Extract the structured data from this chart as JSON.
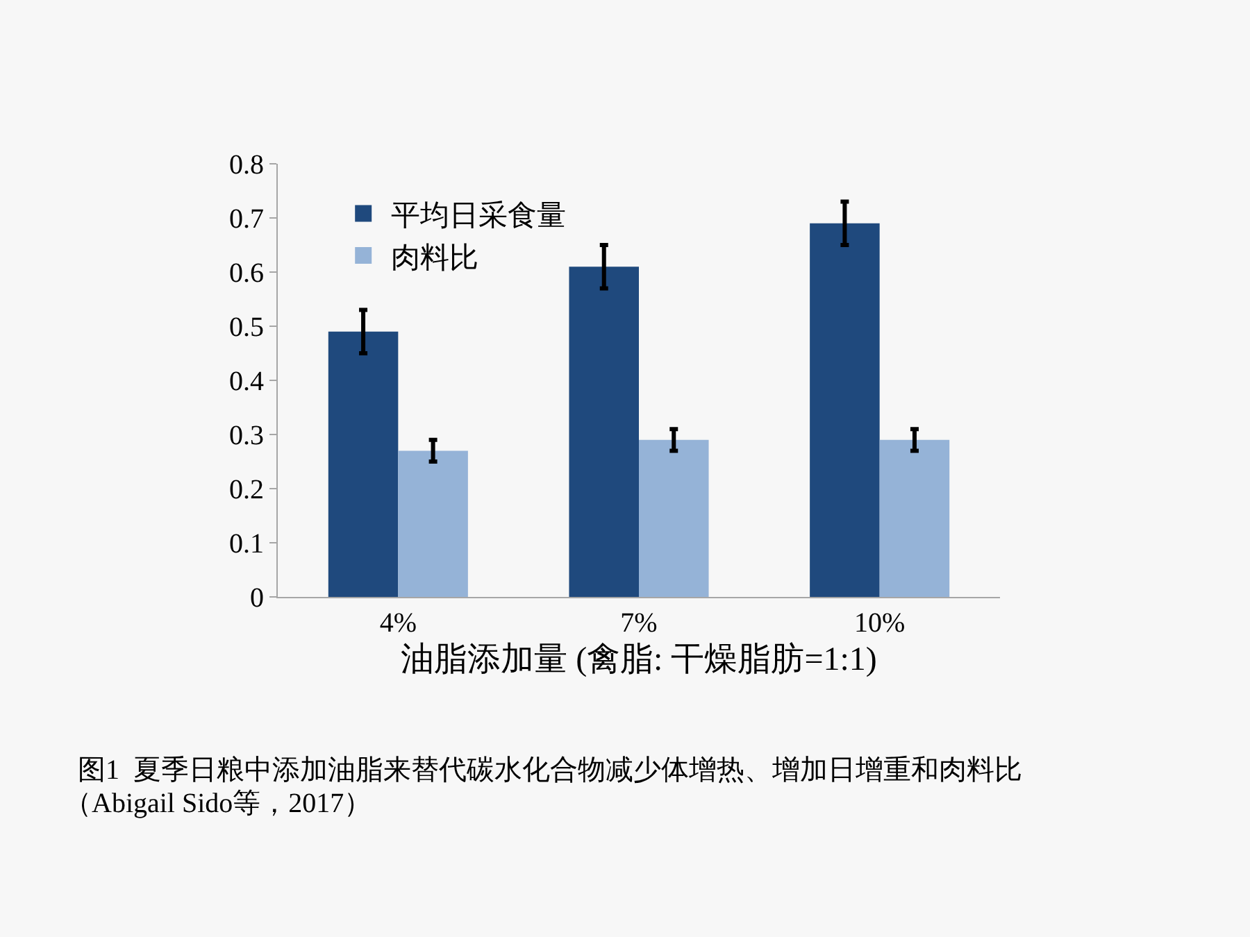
{
  "chart_data": {
    "type": "bar",
    "xlabel": "油脂添加量 (禽脂: 干燥脂肪=1:1)",
    "categories": [
      "4%",
      "7%",
      "10%"
    ],
    "series": [
      {
        "name": "平均日采食量",
        "color": "#1f497d",
        "values": [
          0.49,
          0.61,
          0.69
        ],
        "errors": [
          0.04,
          0.04,
          0.04
        ]
      },
      {
        "name": "肉料比",
        "color": "#95b3d7",
        "values": [
          0.27,
          0.29,
          0.29
        ],
        "errors": [
          0.02,
          0.02,
          0.02
        ]
      }
    ],
    "ylim": [
      0,
      0.8
    ],
    "yticks": [
      0,
      0.1,
      0.2,
      0.3,
      0.4,
      0.5,
      0.6,
      0.7,
      0.8
    ],
    "grid": false,
    "legend": "top left",
    "annotations": [
      "图1  夏季日粮中添加油脂来替代碳水化合物减少体增热、增加日增重和肉料比",
      "（Abigail Sido等，2017）"
    ]
  }
}
